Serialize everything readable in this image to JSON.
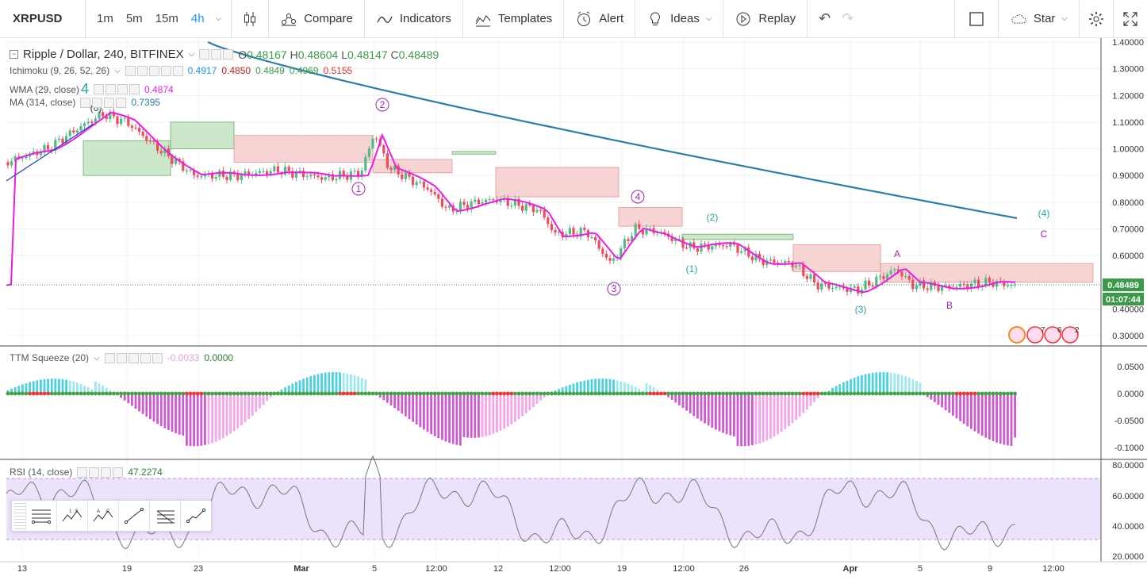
{
  "toolbar": {
    "symbol": "XRPUSD",
    "intervals": [
      "1m",
      "5m",
      "15m",
      "4h"
    ],
    "active_interval": "4h",
    "compare": "Compare",
    "indicators": "Indicators",
    "templates": "Templates",
    "alert": "Alert",
    "ideas": "Ideas",
    "replay": "Replay",
    "star": "Star"
  },
  "main": {
    "title": "Ripple / Dollar, 240, BITFINEX",
    "ohlc": {
      "o_label": "O",
      "o": "0.48167",
      "h_label": "H",
      "h": "0.48604",
      "l_label": "L",
      "l": "0.48147",
      "c_label": "C",
      "c": "0.48489"
    },
    "last_price": "0.48489",
    "countdown": "01:07:44",
    "ichimoku": {
      "label": "Ichimoku (9, 26, 52, 26)",
      "values": [
        "0.4917",
        "0.4850",
        "0.4849",
        "0.4969",
        "0.5155"
      ]
    },
    "wma": {
      "label": "WMA (29, close)",
      "value": "0.4874",
      "badge": "4"
    },
    "ma": {
      "label": "MA (314, close)",
      "value": "0.7395"
    },
    "y_ticks": [
      "1.40000",
      "1.30000",
      "1.20000",
      "1.10000",
      "1.00000",
      "0.90000",
      "0.80000",
      "0.70000",
      "0.60000",
      "0.50000",
      "0.40000",
      "0.30000"
    ],
    "wave_labels": [
      "(0)",
      "1",
      "2",
      "3",
      "4",
      "(1)",
      "(2)",
      "(3)",
      "(4)",
      "A",
      "B",
      "C"
    ],
    "event_counts": [
      "7",
      "6",
      "2"
    ]
  },
  "squeeze": {
    "label": "TTM Squeeze (20)",
    "v1": "-0.0033",
    "v2": "0.0000",
    "y_ticks": [
      "0.0500",
      "0.0000",
      "-0.0500",
      "-0.1000"
    ]
  },
  "rsi": {
    "label": "RSI (14, close)",
    "value": "47.2274",
    "y_ticks": [
      "80.0000",
      "60.0000",
      "40.0000",
      "20.0000"
    ]
  },
  "x_ticks": [
    "13",
    "19",
    "23",
    "Mar",
    "5",
    "12:00",
    "12",
    "12:00",
    "19",
    "12:00",
    "26",
    "Apr",
    "5",
    "9",
    "12:00"
  ],
  "colors": {
    "accent": "#2196f3",
    "wma": "#e91ee0",
    "ma": "#2e7ca8",
    "cloud_green": "#b8dcb8",
    "cloud_red": "#f4c7c7",
    "up": "#53b987",
    "down": "#eb4d5c",
    "rsi_band": "#e8d9fb",
    "wave_purple": "#9c27b0",
    "wave_teal": "#26a69a"
  }
}
